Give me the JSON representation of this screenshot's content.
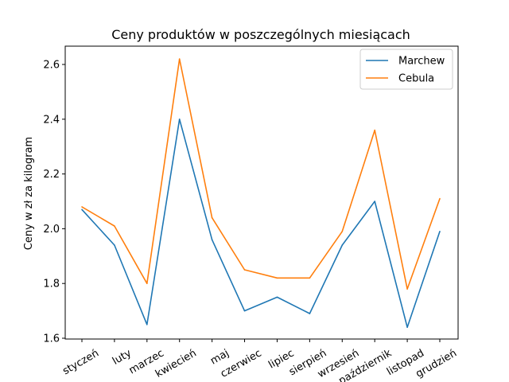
{
  "chart_data": {
    "type": "line",
    "title": "Ceny produktów w poszczególnych miesiącach",
    "xlabel": "",
    "ylabel": "Ceny w zł za kilogram",
    "categories": [
      "styczeń",
      "luty",
      "marzec",
      "kwiecień",
      "maj",
      "czerwiec",
      "lipiec",
      "sierpień",
      "wrzesień",
      "październik",
      "listopad",
      "grudzień"
    ],
    "series": [
      {
        "name": "Marchew",
        "color": "#1f77b4",
        "values": [
          2.07,
          1.94,
          1.65,
          2.4,
          1.96,
          1.7,
          1.75,
          1.69,
          1.94,
          2.1,
          1.64,
          1.99
        ]
      },
      {
        "name": "Cebula",
        "color": "#ff7f0e",
        "values": [
          2.08,
          2.01,
          1.8,
          2.62,
          2.04,
          1.85,
          1.82,
          1.82,
          1.99,
          2.36,
          1.78,
          2.11
        ]
      }
    ],
    "ylim": [
      1.6,
      2.6
    ],
    "yticks": [
      "1.6",
      "1.8",
      "2.0",
      "2.2",
      "2.4",
      "2.6"
    ],
    "grid": false,
    "legend": "top-right"
  }
}
